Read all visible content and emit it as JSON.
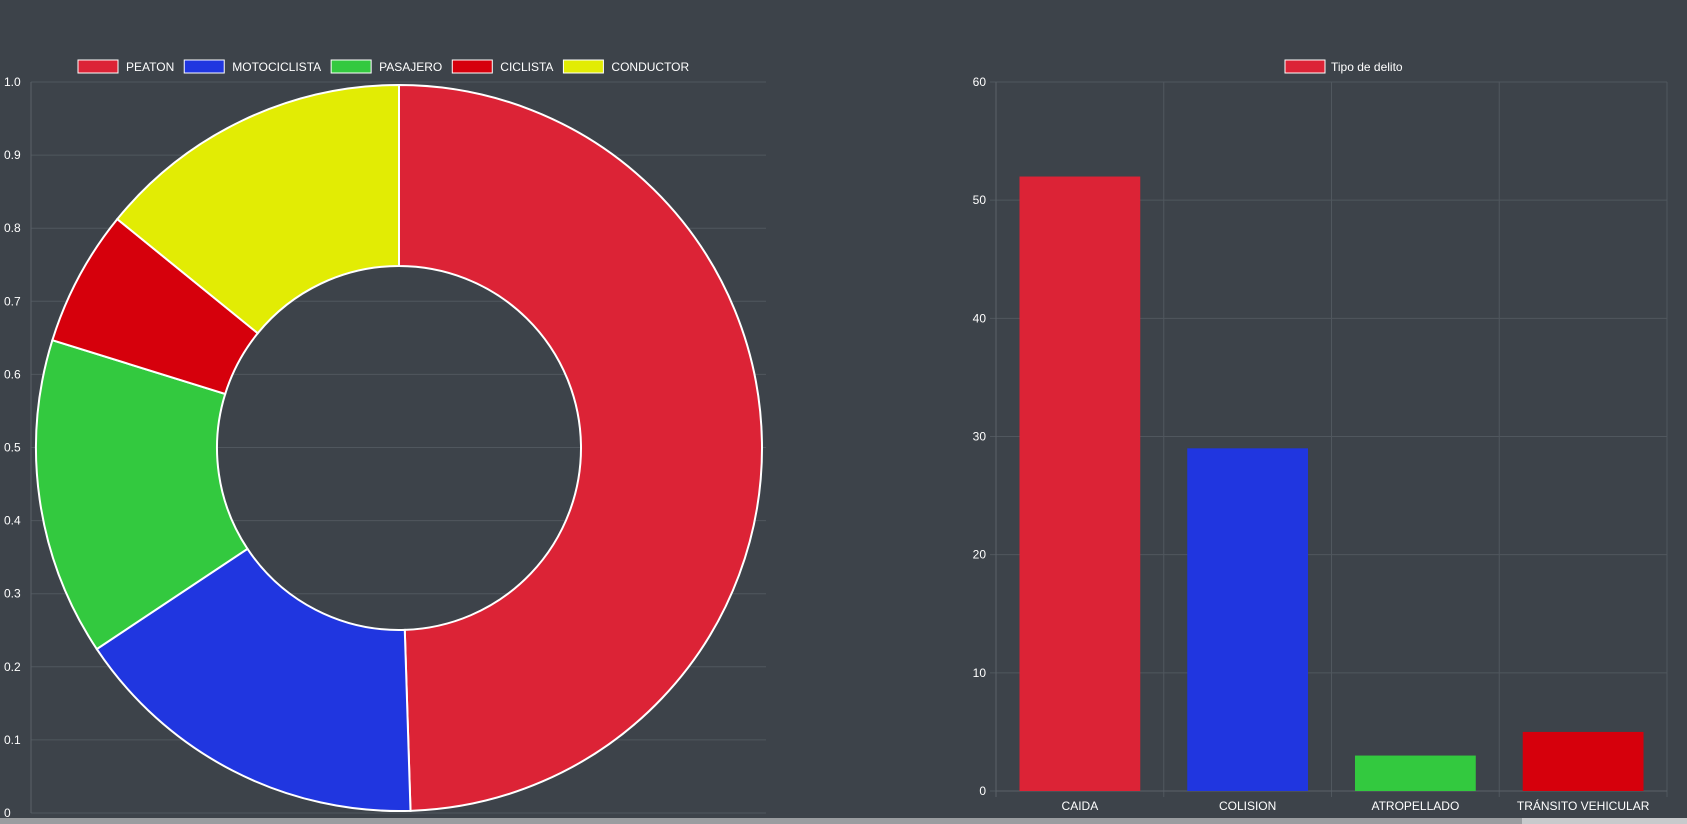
{
  "chart_data": [
    {
      "type": "pie",
      "donut": true,
      "labels": [
        "PEATON",
        "MOTOCICLISTA",
        "PASAJERO",
        "CICLISTA",
        "CONDUCTOR"
      ],
      "values": [
        49,
        16,
        14,
        6,
        14
      ],
      "colors": [
        "#dc2336",
        "#2036e0",
        "#33c93f",
        "#d6000c",
        "#e2ec04"
      ],
      "legend_position": "top",
      "residual_y_axis": {
        "ticks": [
          "0",
          "0.1",
          "0.2",
          "0.3",
          "0.4",
          "0.5",
          "0.6",
          "0.7",
          "0.8",
          "0.9",
          "1.0"
        ],
        "ylim": [
          0,
          1
        ]
      },
      "grid": true
    },
    {
      "type": "bar",
      "categories": [
        "CAIDA",
        "COLISION",
        "ATROPELLADO",
        "TRÁNSITO VEHICULAR"
      ],
      "series": [
        {
          "name": "Tipo de delito",
          "values": [
            52,
            29,
            3,
            5
          ],
          "colors": [
            "#dc2336",
            "#2036e0",
            "#33c93f",
            "#d6000c"
          ]
        }
      ],
      "legend_color": "#dc2336",
      "ylim": [
        0,
        60
      ],
      "yticks": [
        "0",
        "10",
        "20",
        "30",
        "40",
        "50",
        "60"
      ],
      "legend_position": "top",
      "grid": true
    }
  ]
}
